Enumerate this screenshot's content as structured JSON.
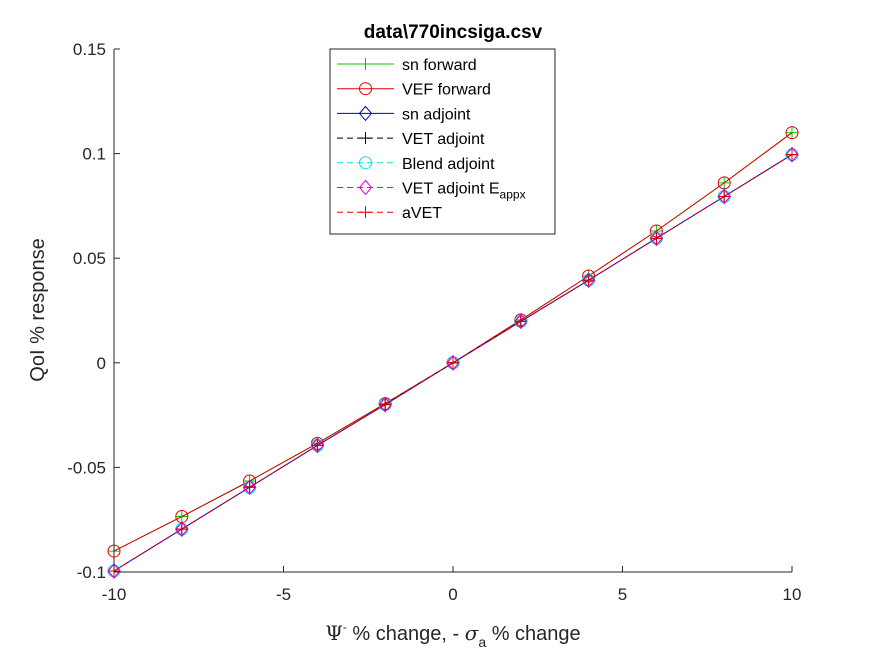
{
  "chart_data": {
    "type": "line",
    "title": "data\\770incsiga.csv",
    "xlabel": {
      "psi": "Ψ",
      "psi_sup": "-",
      "mid": " % change, - ",
      "sigma": "σ",
      "sigma_sub": "a",
      "end": " % change"
    },
    "ylabel": "QoI % response",
    "xlim": [
      -10,
      10
    ],
    "ylim": [
      -0.1,
      0.15
    ],
    "xticks": [
      -10,
      -5,
      0,
      5,
      10
    ],
    "xtick_labels": [
      "-10",
      "-5",
      "0",
      "5",
      "10"
    ],
    "yticks": [
      -0.1,
      -0.05,
      0,
      0.05,
      0.1,
      0.15
    ],
    "ytick_labels": [
      "-0.1",
      "-0.05",
      "0",
      "0.05",
      "0.1",
      "0.15"
    ],
    "grid": false,
    "legend_position": "top-center",
    "x": [
      -10,
      -8,
      -6,
      -4,
      -2,
      0,
      2,
      4,
      6,
      8,
      10
    ],
    "series": [
      {
        "name": "sn forward",
        "color": "#00cc00",
        "dash": "solid",
        "marker": "plus",
        "values": [
          -0.09,
          -0.0735,
          -0.0565,
          -0.0385,
          -0.0195,
          0,
          0.0205,
          0.0415,
          0.063,
          0.086,
          0.11
        ]
      },
      {
        "name": "VEF forward",
        "color": "#e00000",
        "dash": "solid",
        "marker": "circle",
        "values": [
          -0.09,
          -0.0735,
          -0.0565,
          -0.0385,
          -0.0195,
          0,
          0.0205,
          0.0415,
          0.063,
          0.086,
          0.11
        ]
      },
      {
        "name": "sn adjoint",
        "color": "#0000c0",
        "dash": "solid",
        "marker": "diamond",
        "values": [
          -0.0995,
          -0.0795,
          -0.0595,
          -0.0395,
          -0.02,
          0,
          0.0198,
          0.0395,
          0.0595,
          0.0795,
          0.0995
        ]
      },
      {
        "name": "VET adjoint",
        "color": "#000000",
        "dash": "dashed",
        "marker": "plus",
        "values": [
          -0.0995,
          -0.0795,
          -0.0595,
          -0.0395,
          -0.02,
          0,
          0.0198,
          0.0395,
          0.0595,
          0.0795,
          0.0995
        ]
      },
      {
        "name": "Blend adjoint",
        "color": "#00e0e0",
        "dash": "dashed",
        "marker": "circle",
        "values": [
          -0.0995,
          -0.0795,
          -0.0595,
          -0.0395,
          -0.02,
          0,
          0.0198,
          0.0395,
          0.0595,
          0.0795,
          0.0995
        ]
      },
      {
        "name": "VET adjoint E",
        "name_sub": "appx",
        "color": "#e000e0",
        "dash": "dashed",
        "marker": "diamond",
        "values": [
          -0.0995,
          -0.0795,
          -0.0595,
          -0.0395,
          -0.02,
          0,
          0.0198,
          0.0395,
          0.0595,
          0.0795,
          0.0995
        ]
      },
      {
        "name": "aVET",
        "color": "#e00000",
        "dash": "dashed",
        "marker": "plus",
        "values": [
          -0.0995,
          -0.0795,
          -0.0595,
          -0.0395,
          -0.02,
          0,
          0.0198,
          0.0395,
          0.0595,
          0.0795,
          0.0995
        ]
      }
    ]
  }
}
